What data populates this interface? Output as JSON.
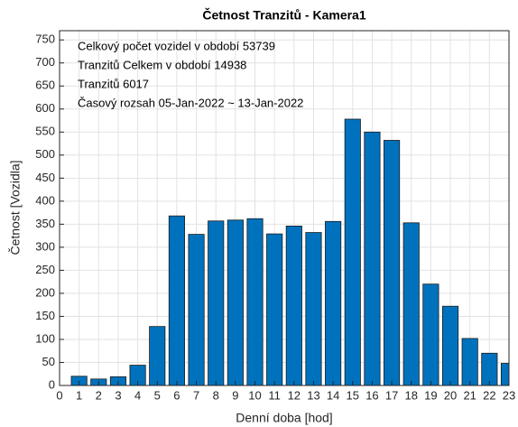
{
  "chart_data": {
    "type": "bar",
    "title": "Četnost Tranzitů - Kamera1",
    "xlabel": "Denní doba [hod]",
    "ylabel": "Četnost [Vozidla]",
    "annotations": [
      "Celkový počet vozidel v období 53739",
      "Tranzitů Celkem v období 14938",
      "Tranzitů 6017",
      "Časový rozsah 05-Jan-2022 ~ 13-Jan-2022"
    ],
    "x": [
      1,
      2,
      3,
      4,
      5,
      6,
      7,
      8,
      9,
      10,
      11,
      12,
      13,
      14,
      15,
      16,
      17,
      18,
      19,
      20,
      21,
      22,
      23
    ],
    "values": [
      20,
      14,
      19,
      44,
      128,
      368,
      328,
      357,
      359,
      362,
      329,
      346,
      332,
      356,
      578,
      550,
      532,
      353,
      220,
      172,
      102,
      70,
      48
    ],
    "color": "#0072bd",
    "xlim": [
      0,
      23
    ],
    "xticks": [
      0,
      1,
      2,
      3,
      4,
      5,
      6,
      7,
      8,
      9,
      10,
      11,
      12,
      13,
      14,
      15,
      16,
      17,
      18,
      19,
      20,
      21,
      22,
      23
    ],
    "ylim": [
      0,
      770
    ],
    "yticks": [
      0,
      50,
      100,
      150,
      200,
      250,
      300,
      350,
      400,
      450,
      500,
      550,
      600,
      650,
      700,
      750
    ],
    "grid": true
  }
}
